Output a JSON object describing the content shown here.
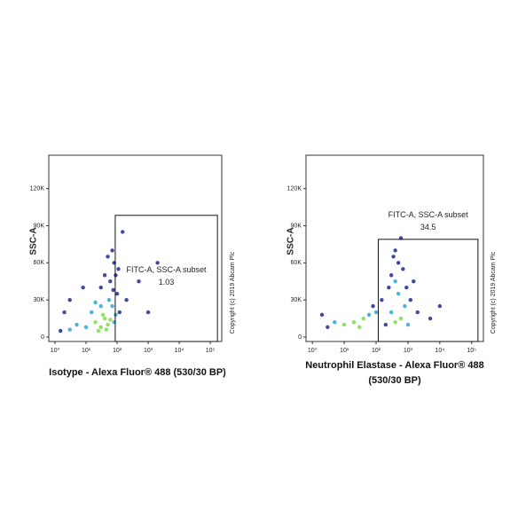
{
  "chart_data": [
    {
      "type": "scatter",
      "x_label": "Isotype - Alexa Fluor® 488 (530/30 BP)",
      "y_label": "SSC-A",
      "annotation": "Copyright (c) 2019 Abcam Plc",
      "xscale": "log",
      "xlim": [
        0.63,
        234000
      ],
      "ylim": [
        -3600,
        147000
      ],
      "xticks": [
        {
          "value": 1,
          "label": "10⁰"
        },
        {
          "value": 10,
          "label": "10¹"
        },
        {
          "value": 100,
          "label": "10²"
        },
        {
          "value": 1000,
          "label": "10³"
        },
        {
          "value": 10000,
          "label": "10⁴"
        },
        {
          "value": 100000,
          "label": "10⁵"
        }
      ],
      "yticks": [
        0,
        {
          "value": 30000,
          "label": "30K"
        },
        {
          "value": 60000,
          "label": "60K"
        },
        {
          "value": 90000,
          "label": "90K"
        },
        {
          "value": 120000,
          "label": "120K"
        }
      ],
      "point_groups": [
        {
          "color": "#1b2a8c",
          "x": [
            60,
            80,
            40,
            100,
            70,
            30,
            90,
            120,
            200,
            500,
            2000,
            150,
            8,
            2,
            1.5,
            3,
            1000,
            50,
            110,
            75
          ],
          "y": [
            45000,
            60000,
            50000,
            35000,
            70000,
            40000,
            50000,
            20000,
            30000,
            45000,
            60000,
            85000,
            40000,
            20000,
            5000,
            30000,
            20000,
            65000,
            55000,
            38000
          ]
        },
        {
          "color": "#29a6d6",
          "x": [
            15,
            70,
            80,
            10,
            55,
            30,
            90,
            5,
            3,
            20
          ],
          "y": [
            20000,
            25000,
            12000,
            8000,
            30000,
            25000,
            18000,
            10000,
            6000,
            28000
          ]
        },
        {
          "color": "#7ddc46",
          "x": [
            20,
            30,
            40,
            50,
            35,
            25,
            45,
            60
          ],
          "y": [
            12000,
            8000,
            15000,
            10000,
            18000,
            5000,
            6000,
            14000
          ]
        }
      ],
      "gate": {
        "name": "FITC-A, SSC-A subset",
        "value": 1.03,
        "xlim": [
          87,
          170000
        ],
        "ylim": [
          -3600,
          98400
        ]
      }
    },
    {
      "type": "scatter",
      "x_label": "Neutrophil Elastase - Alexa Fluor® 488\n(530/30 BP)",
      "y_label": "SSC-A",
      "annotation": "Copyright (c) 2019 Abcam Plc",
      "xscale": "log",
      "xlim": [
        0.63,
        234000
      ],
      "ylim": [
        -3600,
        147000
      ],
      "xticks": [
        {
          "value": 1,
          "label": "10⁰"
        },
        {
          "value": 10,
          "label": "10¹"
        },
        {
          "value": 100,
          "label": "10²"
        },
        {
          "value": 1000,
          "label": "10³"
        },
        {
          "value": 10000,
          "label": "10⁴"
        },
        {
          "value": 100000,
          "label": "10⁵"
        }
      ],
      "yticks": [
        0,
        {
          "value": 30000,
          "label": "30K"
        },
        {
          "value": 60000,
          "label": "60K"
        },
        {
          "value": 90000,
          "label": "90K"
        },
        {
          "value": 120000,
          "label": "120K"
        }
      ],
      "point_groups": [
        {
          "color": "#1b2a8c",
          "x": [
            300,
            500,
            400,
            700,
            250,
            1200,
            2000,
            600,
            150,
            80,
            3,
            2,
            200,
            5000,
            900,
            350,
            1500,
            10000
          ],
          "y": [
            50000,
            60000,
            70000,
            55000,
            40000,
            30000,
            20000,
            80000,
            30000,
            25000,
            8000,
            18000,
            10000,
            15000,
            40000,
            65000,
            45000,
            25000
          ]
        },
        {
          "color": "#29a6d6",
          "x": [
            300,
            800,
            500,
            60,
            5,
            100,
            1000,
            400
          ],
          "y": [
            20000,
            25000,
            35000,
            18000,
            12000,
            20000,
            10000,
            45000
          ]
        },
        {
          "color": "#7ddc46",
          "x": [
            20,
            40,
            10,
            400,
            600,
            30
          ],
          "y": [
            12000,
            15000,
            10000,
            12000,
            15000,
            8000
          ]
        }
      ],
      "gate": {
        "name": "FITC-A, SSC-A subset",
        "value": 34.5,
        "xlim": [
          117,
          158000
        ],
        "ylim": [
          -3600,
          79000
        ]
      }
    }
  ]
}
